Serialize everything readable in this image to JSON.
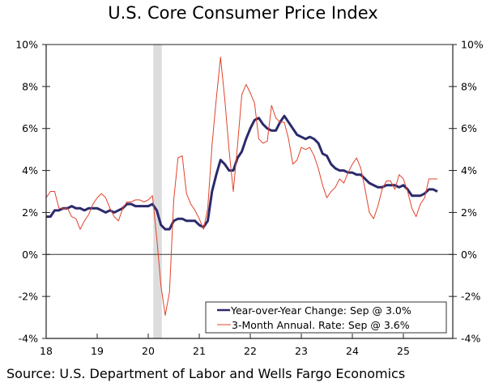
{
  "chart_data": {
    "type": "line",
    "title": "U.S. Core Consumer Price Index",
    "source": "Source: U.S. Department of Labor and Wells Fargo Economics",
    "xlabel": "",
    "ylabel": "",
    "ylim": [
      -4,
      10
    ],
    "y_ticks": [
      -4,
      -2,
      0,
      2,
      4,
      6,
      8,
      10
    ],
    "y_tick_labels": [
      "-4%",
      "-2%",
      "0%",
      "2%",
      "4%",
      "6%",
      "8%",
      "10%"
    ],
    "x_ticks": [
      2018,
      2019,
      2020,
      2021,
      2022,
      2023,
      2024,
      2025
    ],
    "x_tick_labels": [
      "18",
      "19",
      "20",
      "21",
      "22",
      "23",
      "24",
      "25"
    ],
    "x_range": [
      "2018-01",
      "2025-12"
    ],
    "recession_shading": {
      "start": "2020-02",
      "end": "2020-04",
      "color": "#dcdcdc"
    },
    "legend_position": "bottom-right",
    "start": "2018-01",
    "frequency": "monthly",
    "series": [
      {
        "name": "Year-over-Year Change: Sep @ 3.0%",
        "color": "#2b2a6b",
        "values": [
          1.8,
          1.8,
          2.1,
          2.1,
          2.2,
          2.2,
          2.3,
          2.2,
          2.2,
          2.1,
          2.2,
          2.2,
          2.2,
          2.1,
          2.0,
          2.1,
          2.0,
          2.1,
          2.2,
          2.4,
          2.4,
          2.3,
          2.3,
          2.3,
          2.3,
          2.4,
          2.1,
          1.4,
          1.2,
          1.2,
          1.6,
          1.7,
          1.7,
          1.6,
          1.6,
          1.6,
          1.4,
          1.3,
          1.6,
          3.0,
          3.8,
          4.5,
          4.3,
          4.0,
          4.0,
          4.6,
          4.9,
          5.5,
          6.0,
          6.4,
          6.5,
          6.2,
          6.0,
          5.9,
          5.9,
          6.3,
          6.6,
          6.3,
          6.0,
          5.7,
          5.6,
          5.5,
          5.6,
          5.5,
          5.3,
          4.8,
          4.7,
          4.3,
          4.1,
          4.0,
          4.0,
          3.9,
          3.9,
          3.8,
          3.8,
          3.6,
          3.4,
          3.3,
          3.2,
          3.2,
          3.3,
          3.3,
          3.3,
          3.2,
          3.3,
          3.1,
          2.8,
          2.8,
          2.8,
          2.9,
          3.1,
          3.1,
          3.0
        ]
      },
      {
        "name": "3-Month Annual. Rate: Sep @ 3.6%",
        "color": "#e0432b",
        "values": [
          2.7,
          3.0,
          3.0,
          2.2,
          2.2,
          2.2,
          1.8,
          1.7,
          1.2,
          1.6,
          1.9,
          2.4,
          2.7,
          2.9,
          2.7,
          2.2,
          1.8,
          1.6,
          2.2,
          2.5,
          2.5,
          2.6,
          2.6,
          2.5,
          2.6,
          2.8,
          0.8,
          -1.5,
          -2.9,
          -1.8,
          2.6,
          4.6,
          4.7,
          2.9,
          2.4,
          2.1,
          1.7,
          1.2,
          2.2,
          5.2,
          7.4,
          9.4,
          7.4,
          5.0,
          3.0,
          5.2,
          7.6,
          8.1,
          7.7,
          7.2,
          5.5,
          5.3,
          5.4,
          7.1,
          6.5,
          6.3,
          6.3,
          5.5,
          4.3,
          4.5,
          5.1,
          5.0,
          5.1,
          4.7,
          4.1,
          3.3,
          2.7,
          3.0,
          3.2,
          3.6,
          3.4,
          3.9,
          4.3,
          4.6,
          4.1,
          3.1,
          2.0,
          1.7,
          2.3,
          3.1,
          3.5,
          3.5,
          3.1,
          3.8,
          3.6,
          3.0,
          2.2,
          1.8,
          2.4,
          2.7,
          3.6,
          3.6,
          3.6
        ]
      }
    ]
  }
}
